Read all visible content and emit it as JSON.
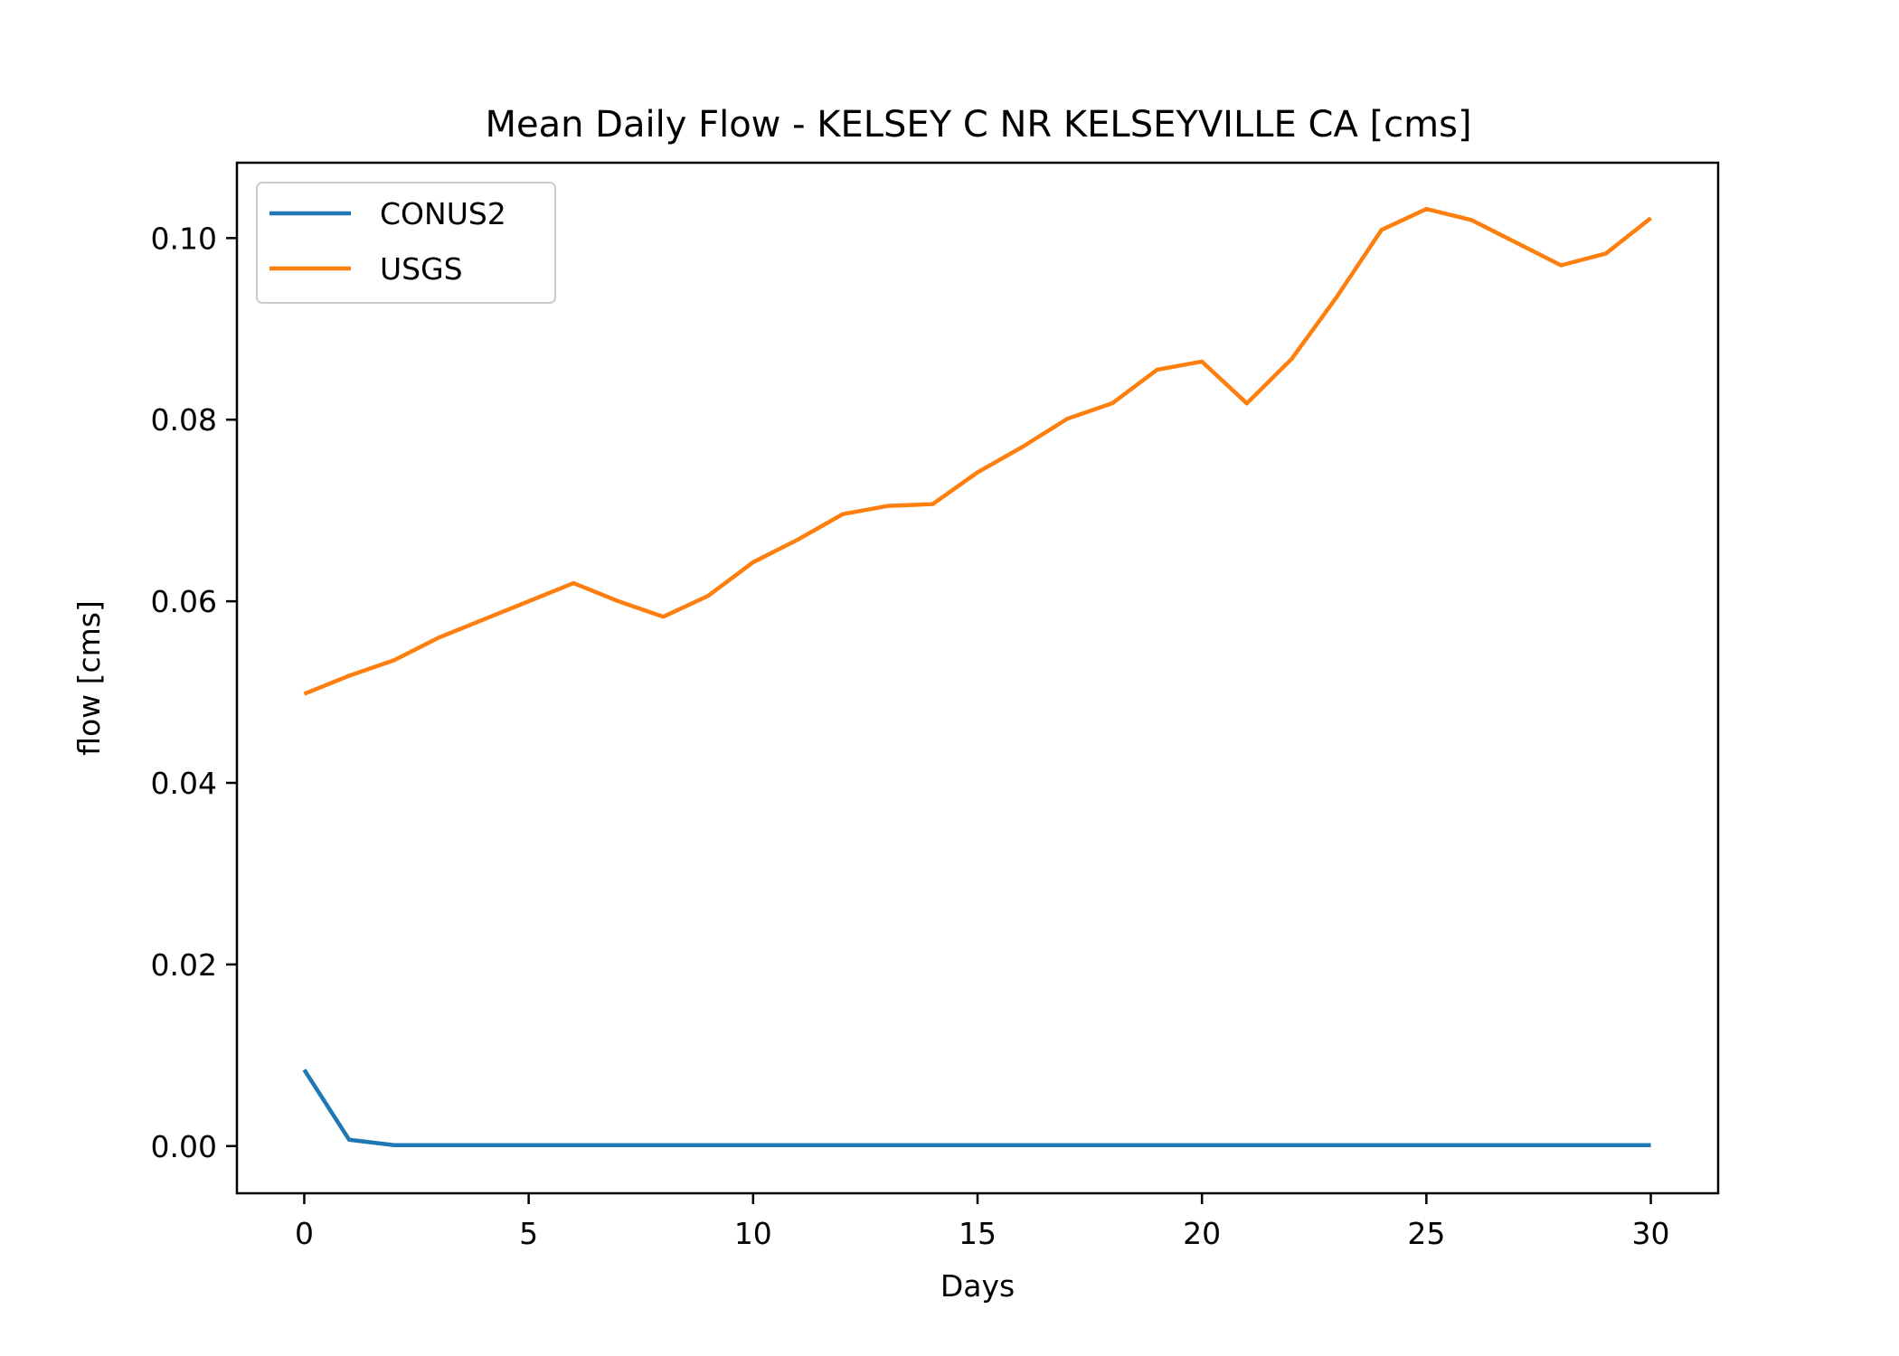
{
  "chart_data": {
    "type": "line",
    "title": "Mean Daily Flow - KELSEY C NR KELSEYVILLE CA [cms]",
    "xlabel": "Days",
    "ylabel": "flow [cms]",
    "xlim": [
      -1.5,
      31.5
    ],
    "ylim": [
      -0.0052,
      0.1083
    ],
    "x_ticks": [
      0,
      5,
      10,
      15,
      20,
      25,
      30
    ],
    "x_tick_labels": [
      "0",
      "5",
      "10",
      "15",
      "20",
      "25",
      "30"
    ],
    "y_ticks": [
      0.0,
      0.02,
      0.04,
      0.06,
      0.08,
      0.1
    ],
    "y_tick_labels": [
      "0.00",
      "0.02",
      "0.04",
      "0.06",
      "0.08",
      "0.10"
    ],
    "grid": false,
    "legend_position": "top-left",
    "x": [
      0,
      1,
      2,
      3,
      4,
      5,
      6,
      7,
      8,
      9,
      10,
      11,
      12,
      13,
      14,
      15,
      16,
      17,
      18,
      19,
      20,
      21,
      22,
      23,
      24,
      25,
      26,
      27,
      28,
      29,
      30
    ],
    "series": [
      {
        "name": "CONUS2",
        "color": "#1f77b4",
        "values": [
          0.0084,
          0.0007,
          0.0001,
          0.0001,
          0.0001,
          0.0001,
          0.0001,
          0.0001,
          0.0001,
          0.0001,
          0.0001,
          0.0001,
          0.0001,
          0.0001,
          0.0001,
          0.0001,
          0.0001,
          0.0001,
          0.0001,
          0.0001,
          0.0001,
          0.0001,
          0.0001,
          0.0001,
          0.0001,
          0.0001,
          0.0001,
          0.0001,
          0.0001,
          0.0001,
          0.0001
        ]
      },
      {
        "name": "USGS",
        "color": "#ff7f0e",
        "values": [
          0.0498,
          0.0518,
          0.0535,
          0.056,
          0.058,
          0.06,
          0.062,
          0.06,
          0.0583,
          0.0606,
          0.0643,
          0.0668,
          0.0696,
          0.0705,
          0.0707,
          0.0742,
          0.077,
          0.0801,
          0.0818,
          0.0855,
          0.0864,
          0.0818,
          0.0867,
          0.0935,
          0.1009,
          0.1032,
          0.102,
          0.0995,
          0.097,
          0.0983,
          0.1022
        ]
      }
    ]
  }
}
